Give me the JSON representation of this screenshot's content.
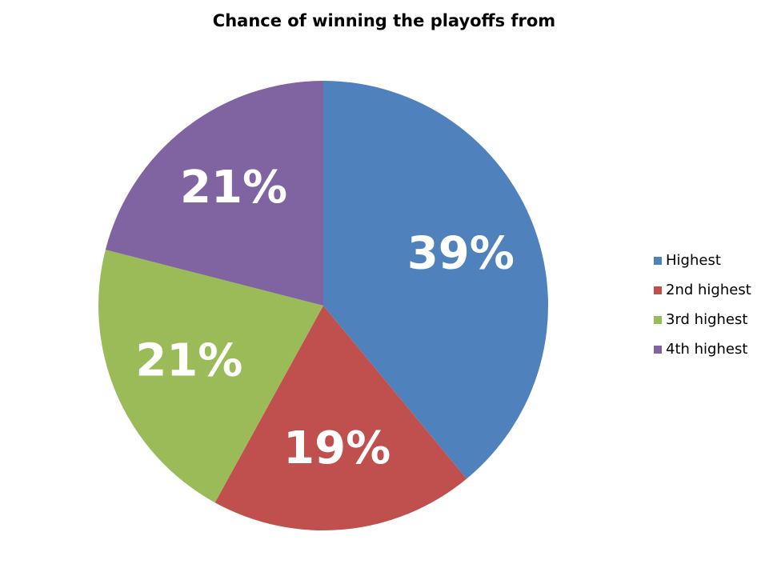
{
  "chart_data": {
    "type": "pie",
    "title": "Chance of winning the playoffs from",
    "categories": [
      "Highest",
      "2nd highest",
      "3rd highest",
      "4th highest"
    ],
    "values": [
      39,
      19,
      21,
      21
    ],
    "value_labels": [
      "39%",
      "19%",
      "21%",
      "21%"
    ],
    "colors": [
      "#4f81bd",
      "#c0504d",
      "#9bbb59",
      "#8064a2"
    ],
    "legend": "right"
  }
}
